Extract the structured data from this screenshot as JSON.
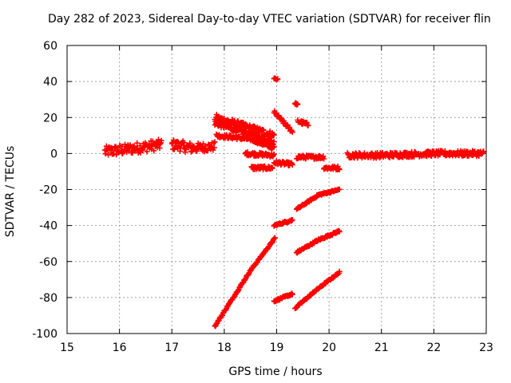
{
  "chart_data": {
    "type": "scatter",
    "title": "Day 282 of 2023, Sidereal Day-to-day VTEC variation (SDTVAR) for receiver flin",
    "xlabel": "GPS time / hours",
    "ylabel": "SDTVAR / TECUs",
    "xlim": [
      15,
      23
    ],
    "ylim": [
      -100,
      60
    ],
    "xticks": [
      "15",
      "16",
      "17",
      "18",
      "19",
      "20",
      "21",
      "22",
      "23"
    ],
    "yticks": [
      "-100",
      "-80",
      "-60",
      "-40",
      "-20",
      "0",
      "20",
      "40",
      "60"
    ],
    "grid": true,
    "marker_color": "#ff0000",
    "marker": "plus",
    "segments": [
      {
        "x_start": 15.72,
        "x_end": 16.05,
        "y_start": 1,
        "y_end": 2,
        "spread": 3
      },
      {
        "x_start": 16.05,
        "x_end": 16.8,
        "y_start": 2,
        "y_end": 5,
        "spread": 3
      },
      {
        "x_start": 17.0,
        "x_end": 17.4,
        "y_start": 5,
        "y_end": 3,
        "spread": 3
      },
      {
        "x_start": 17.4,
        "x_end": 17.82,
        "y_start": 3,
        "y_end": 4,
        "spread": 2.5
      },
      {
        "x_start": 17.82,
        "x_end": 18.95,
        "y_start": 20,
        "y_end": 10,
        "spread": 2
      },
      {
        "x_start": 17.82,
        "x_end": 18.95,
        "y_start": 17,
        "y_end": 6,
        "spread": 1.5
      },
      {
        "x_start": 17.85,
        "x_end": 18.5,
        "y_start": 10,
        "y_end": 8,
        "spread": 1
      },
      {
        "x_start": 18.5,
        "x_end": 18.95,
        "y_start": 8,
        "y_end": 3,
        "spread": 1
      },
      {
        "x_start": 18.4,
        "x_end": 18.95,
        "y_start": 0,
        "y_end": -1,
        "spread": 1
      },
      {
        "x_start": 18.52,
        "x_end": 18.92,
        "y_start": -8,
        "y_end": -8,
        "spread": 1
      },
      {
        "x_start": 18.95,
        "x_end": 19.3,
        "y_start": -5,
        "y_end": -6,
        "spread": 1
      },
      {
        "x_start": 18.95,
        "x_end": 19.3,
        "y_start": 23,
        "y_end": 12,
        "spread": 1
      },
      {
        "x_start": 18.95,
        "x_end": 19.02,
        "y_start": 42,
        "y_end": 41,
        "spread": 0.5
      },
      {
        "x_start": 19.35,
        "x_end": 19.4,
        "y_start": 28,
        "y_end": 27,
        "spread": 0.5
      },
      {
        "x_start": 19.4,
        "x_end": 19.6,
        "y_start": 18,
        "y_end": 16,
        "spread": 1
      },
      {
        "x_start": 19.38,
        "x_end": 19.9,
        "y_start": -2,
        "y_end": -2,
        "spread": 1
      },
      {
        "x_start": 19.9,
        "x_end": 20.2,
        "y_start": -8,
        "y_end": -8,
        "spread": 1
      },
      {
        "x_start": 17.82,
        "x_end": 18.5,
        "y_start": -96,
        "y_end": -65,
        "spread": 0.5
      },
      {
        "x_start": 18.5,
        "x_end": 18.97,
        "y_start": -65,
        "y_end": -47,
        "spread": 0.5
      },
      {
        "x_start": 18.95,
        "x_end": 19.3,
        "y_start": -40,
        "y_end": -37,
        "spread": 0.5
      },
      {
        "x_start": 18.95,
        "x_end": 19.3,
        "y_start": -82,
        "y_end": -78,
        "spread": 0.5
      },
      {
        "x_start": 19.38,
        "x_end": 19.8,
        "y_start": -31,
        "y_end": -23,
        "spread": 0.5
      },
      {
        "x_start": 19.8,
        "x_end": 20.2,
        "y_start": -23,
        "y_end": -20,
        "spread": 0.5
      },
      {
        "x_start": 19.38,
        "x_end": 19.8,
        "y_start": -55,
        "y_end": -48,
        "spread": 0.5
      },
      {
        "x_start": 19.8,
        "x_end": 20.2,
        "y_start": -48,
        "y_end": -43,
        "spread": 0.5
      },
      {
        "x_start": 19.35,
        "x_end": 19.75,
        "y_start": -86,
        "y_end": -76,
        "spread": 0.5
      },
      {
        "x_start": 19.75,
        "x_end": 20.2,
        "y_start": -76,
        "y_end": -66,
        "spread": 0.5
      },
      {
        "x_start": 20.35,
        "x_end": 21.0,
        "y_start": -1,
        "y_end": -1,
        "spread": 1.5
      },
      {
        "x_start": 21.0,
        "x_end": 22.0,
        "y_start": -1,
        "y_end": 0,
        "spread": 1.5
      },
      {
        "x_start": 22.0,
        "x_end": 22.95,
        "y_start": 0,
        "y_end": 0,
        "spread": 1.5
      }
    ]
  }
}
